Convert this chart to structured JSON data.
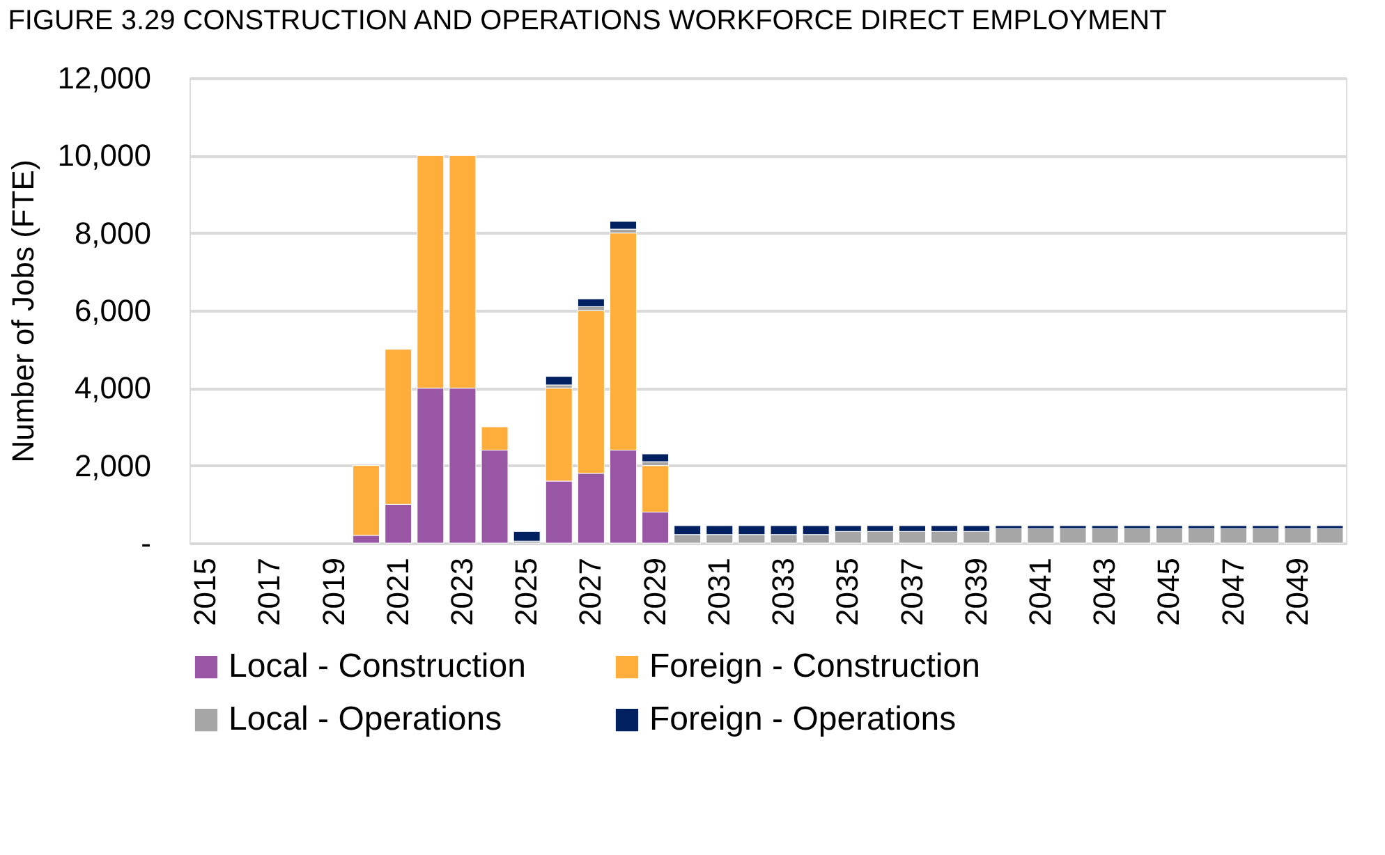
{
  "chart_data": {
    "type": "bar",
    "title": "FIGURE 3.29 CONSTRUCTION AND OPERATIONS WORKFORCE DIRECT EMPLOYMENT",
    "ylabel": "Number of Jobs (FTE)",
    "categories": [
      "2015",
      null,
      "2017",
      null,
      "2019",
      null,
      "2021",
      null,
      "2023",
      null,
      "2025",
      null,
      "2027",
      null,
      "2029",
      null,
      "2031",
      null,
      "2033",
      null,
      "2035",
      null,
      "2037",
      null,
      "2039",
      null,
      "2041",
      null,
      "2043",
      null,
      "2045",
      null,
      "2047",
      null,
      "2049",
      null
    ],
    "stacked": true,
    "series": [
      {
        "name": "Local - Construction",
        "color": "#9856a5",
        "values": [
          null,
          null,
          null,
          null,
          null,
          200,
          1000,
          4000,
          4000,
          2400,
          null,
          1600,
          1800,
          2400,
          800,
          null,
          null,
          null,
          null,
          null,
          null,
          null,
          null,
          null,
          null,
          null,
          null,
          null,
          null,
          null,
          null,
          null,
          null,
          null,
          null,
          null
        ]
      },
      {
        "name": "Foreign - Construction",
        "color": "#ffad3b",
        "values": [
          null,
          null,
          null,
          null,
          null,
          1800,
          4000,
          6000,
          6000,
          600,
          null,
          2400,
          4200,
          5600,
          1200,
          null,
          null,
          null,
          null,
          null,
          null,
          null,
          null,
          null,
          null,
          null,
          null,
          null,
          null,
          null,
          null,
          null,
          null,
          null,
          null,
          null
        ]
      },
      {
        "name": "Local - Operations",
        "color": "#a6a6a6",
        "values": [
          null,
          null,
          null,
          null,
          null,
          null,
          null,
          null,
          null,
          null,
          50,
          80,
          100,
          100,
          100,
          220,
          220,
          220,
          220,
          220,
          300,
          300,
          300,
          300,
          300,
          370,
          370,
          370,
          370,
          370,
          370,
          370,
          370,
          370,
          370,
          370
        ]
      },
      {
        "name": "Foreign - Operations",
        "color": "#002060",
        "values": [
          null,
          null,
          null,
          null,
          null,
          null,
          null,
          null,
          null,
          null,
          250,
          220,
          200,
          200,
          200,
          230,
          230,
          230,
          230,
          230,
          150,
          150,
          150,
          150,
          150,
          80,
          80,
          80,
          80,
          80,
          80,
          80,
          80,
          80,
          80,
          80
        ]
      }
    ],
    "ylim": [
      0,
      12000
    ],
    "yticks": [
      {
        "value": 0,
        "label": "-"
      },
      {
        "value": 2000,
        "label": "2,000"
      },
      {
        "value": 4000,
        "label": "4,000"
      },
      {
        "value": 6000,
        "label": "6,000"
      },
      {
        "value": 8000,
        "label": "8,000"
      },
      {
        "value": 10000,
        "label": "10,000"
      },
      {
        "value": 12000,
        "label": "12,000"
      }
    ],
    "grid": "y",
    "legend": "bottom"
  }
}
